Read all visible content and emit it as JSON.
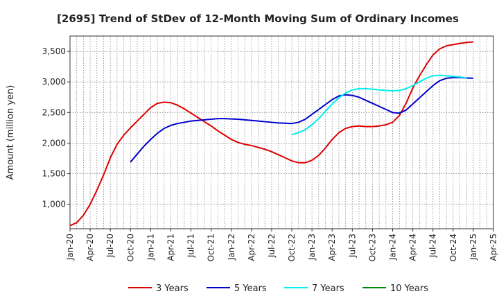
{
  "chart_data": {
    "type": "line",
    "title": "[2695]  Trend of StDev of 12-Month Moving Sum of Ordinary Incomes",
    "ylabel": "Amount (million yen)",
    "xlabel": "",
    "ylim": [
      600,
      3750
    ],
    "yticks": [
      1000,
      1500,
      2000,
      2500,
      3000,
      3500
    ],
    "ytick_labels": [
      "1,000",
      "1,500",
      "2,000",
      "2,500",
      "3,000",
      "3,500"
    ],
    "x_start": "Jan-20",
    "x_end": "Apr-25",
    "xtick_labels": [
      "Jan-20",
      "Apr-20",
      "Jul-20",
      "Oct-20",
      "Jan-21",
      "Apr-21",
      "Jul-21",
      "Oct-21",
      "Jan-22",
      "Apr-22",
      "Jul-22",
      "Oct-22",
      "Jan-23",
      "Apr-23",
      "Jul-23",
      "Oct-23",
      "Jan-24",
      "Apr-24",
      "Jul-24",
      "Oct-24",
      "Jan-25",
      "Apr-25"
    ],
    "grid": true,
    "legend_position": "bottom",
    "series": [
      {
        "name": "3 Years",
        "color": "#dd0000",
        "start_index": 0,
        "values": [
          650,
          700,
          820,
          1000,
          1230,
          1480,
          1760,
          1980,
          2130,
          2250,
          2360,
          2470,
          2580,
          2650,
          2670,
          2660,
          2620,
          2560,
          2490,
          2420,
          2350,
          2280,
          2200,
          2130,
          2060,
          2010,
          1980,
          1960,
          1930,
          1900,
          1860,
          1810,
          1760,
          1710,
          1680,
          1680,
          1720,
          1800,
          1920,
          2060,
          2170,
          2240,
          2270,
          2280,
          2270,
          2270,
          2280,
          2300,
          2340,
          2450,
          2650,
          2900,
          3100,
          3280,
          3440,
          3540,
          3590,
          3610,
          3630,
          3645,
          3655
        ]
      },
      {
        "name": "5 Years",
        "color": "#0000cc",
        "start_index": 9,
        "values": [
          1690,
          1820,
          1950,
          2060,
          2160,
          2240,
          2290,
          2320,
          2340,
          2360,
          2370,
          2380,
          2390,
          2400,
          2400,
          2395,
          2390,
          2380,
          2370,
          2360,
          2350,
          2340,
          2330,
          2325,
          2320,
          2340,
          2390,
          2470,
          2550,
          2630,
          2710,
          2770,
          2790,
          2780,
          2750,
          2700,
          2650,
          2600,
          2550,
          2500,
          2490,
          2540,
          2640,
          2740,
          2840,
          2940,
          3020,
          3060,
          3070,
          3070,
          3065,
          3060
        ]
      },
      {
        "name": "7 Years",
        "color": "#00eeee",
        "start_index": 33,
        "values": [
          2140,
          2170,
          2220,
          2300,
          2400,
          2520,
          2640,
          2740,
          2820,
          2870,
          2890,
          2890,
          2880,
          2870,
          2860,
          2855,
          2860,
          2890,
          2940,
          3000,
          3060,
          3100,
          3110,
          3100,
          3090,
          3080,
          3065
        ]
      },
      {
        "name": "10 Years",
        "color": "#008800",
        "start_index": 0,
        "values": []
      }
    ]
  }
}
